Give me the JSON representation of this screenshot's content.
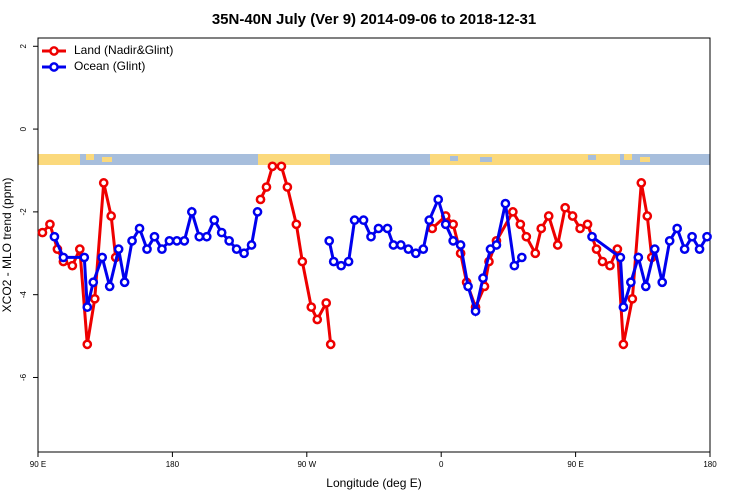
{
  "chart_data": {
    "type": "line",
    "title": "35N-40N July (Ver 9)   2014-09-06 to 2018-12-31",
    "xlabel": "Longitude (deg E)",
    "ylabel": "XCO2 - MLO trend (ppm)",
    "xlim": [
      90,
      540
    ],
    "xticks": [
      {
        "value": 90,
        "label": "90 E"
      },
      180,
      {
        "value": 270,
        "label": "90 W"
      },
      {
        "value": 360,
        "label": "0"
      },
      {
        "value": 450,
        "label": "90 E"
      },
      {
        "value": 540,
        "label": "180"
      }
    ],
    "ylim": [
      -7.8,
      2.2
    ],
    "yticks": [
      2,
      0,
      -2,
      -4,
      -6
    ],
    "legend": "top-left",
    "series": [
      {
        "name": "Land (Nadir&Glint)",
        "color": "#ee0000",
        "x": [
          93,
          98,
          103,
          107,
          113,
          118,
          123,
          128,
          134,
          139,
          142,
          null,
          239,
          243,
          247,
          253,
          257,
          263,
          267,
          273,
          277,
          283,
          286,
          null,
          354,
          363,
          368,
          373,
          377,
          383,
          389,
          392,
          397,
          408,
          413,
          417,
          423,
          427,
          432,
          438,
          443,
          448,
          453,
          458,
          464,
          468,
          473,
          478,
          482,
          488,
          494,
          498,
          501
        ],
        "values": [
          -2.5,
          -2.3,
          -2.9,
          -3.2,
          -3.3,
          -2.9,
          -5.2,
          -4.1,
          -1.3,
          -2.1,
          -3.1,
          null,
          -1.7,
          -1.4,
          -0.9,
          -0.9,
          -1.4,
          -2.3,
          -3.2,
          -4.3,
          -4.6,
          -4.2,
          -5.2,
          null,
          -2.4,
          -2.1,
          -2.3,
          -3.0,
          -3.7,
          -4.3,
          -3.8,
          -3.2,
          -2.7,
          -2.0,
          -2.3,
          -2.6,
          -3.0,
          -2.4,
          -2.1,
          -2.8,
          -1.9,
          -2.1,
          -2.4,
          -2.3,
          -2.9,
          -3.2,
          -3.3,
          -2.9,
          -5.2,
          -4.1,
          -1.3,
          -2.1,
          -3.1
        ]
      },
      {
        "name": "Ocean (Glint)",
        "color": "#0000ee",
        "x": [
          101,
          107,
          121,
          123,
          127,
          133,
          138,
          144,
          148,
          153,
          158,
          163,
          168,
          173,
          178,
          183,
          188,
          193,
          198,
          203,
          208,
          213,
          218,
          223,
          228,
          233,
          237,
          null,
          285,
          288,
          293,
          298,
          302,
          308,
          313,
          318,
          324,
          328,
          333,
          338,
          343,
          348,
          352,
          358,
          363,
          368,
          373,
          378,
          383,
          388,
          393,
          397,
          403,
          409,
          414,
          null,
          461,
          480,
          482,
          487,
          492,
          497,
          503,
          508,
          513,
          518,
          523,
          528,
          533,
          538
        ],
        "values": [
          -2.6,
          -3.1,
          -3.1,
          -4.3,
          -3.7,
          -3.1,
          -3.8,
          -2.9,
          -3.7,
          -2.7,
          -2.4,
          -2.9,
          -2.6,
          -2.9,
          -2.7,
          -2.7,
          -2.7,
          -2.0,
          -2.6,
          -2.6,
          -2.2,
          -2.5,
          -2.7,
          -2.9,
          -3.0,
          -2.8,
          -2.0,
          null,
          -2.7,
          -3.2,
          -3.3,
          -3.2,
          -2.2,
          -2.2,
          -2.6,
          -2.4,
          -2.4,
          -2.8,
          -2.8,
          -2.9,
          -3.0,
          -2.9,
          -2.2,
          -1.7,
          -2.3,
          -2.7,
          -2.8,
          -3.8,
          -4.4,
          -3.6,
          -2.9,
          -2.8,
          -1.8,
          -3.3,
          -3.1,
          null,
          -2.6,
          -3.1,
          -4.3,
          -3.7,
          -3.1,
          -3.8,
          -2.9,
          -3.7,
          -2.7,
          -2.4,
          -2.9,
          -2.6,
          -2.9,
          -2.6
        ]
      }
    ]
  }
}
